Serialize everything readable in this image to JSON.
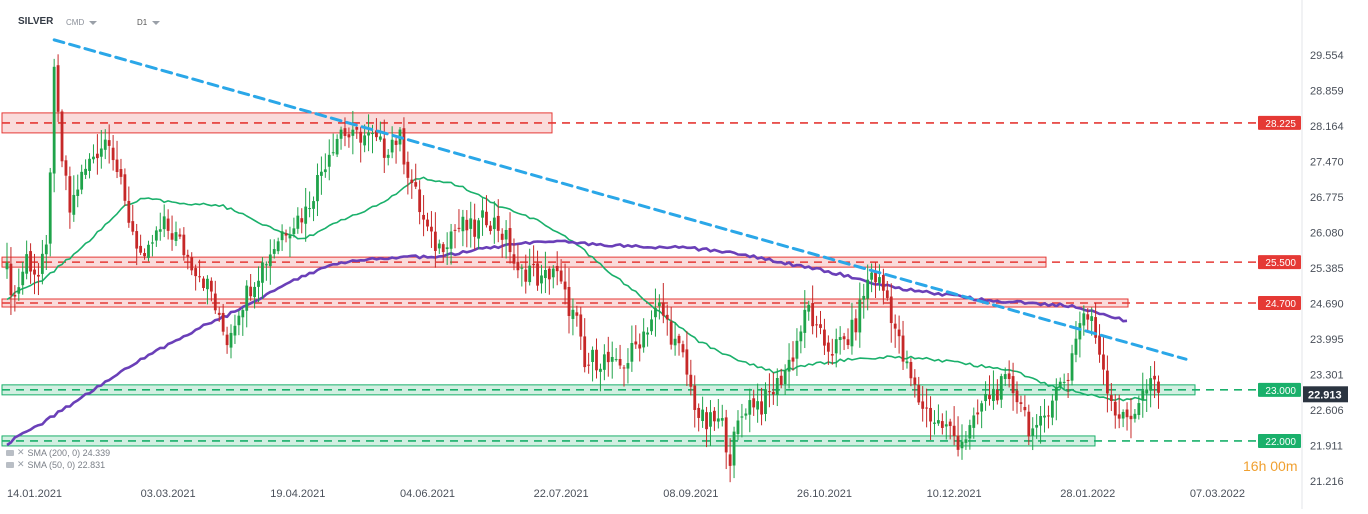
{
  "header": {
    "symbol": "SILVER",
    "source": "CMD",
    "timeframe": "D1"
  },
  "indicators": [
    {
      "label": "SMA (200, 0) 24.339"
    },
    {
      "label": "SMA (50, 0) 22.831"
    }
  ],
  "countdown": "16h 00m",
  "colors": {
    "up_candle": "#1fa34a",
    "down_candle": "#c62828",
    "sma200": "#6a3fb8",
    "sma50": "#1ab06b",
    "trendline": "#2aa7e8",
    "resistance": "#e53935",
    "support": "#1ab06b",
    "current_price_bg": "#2b3440"
  },
  "chart_data": {
    "type": "candlestick",
    "ylim": [
      21.216,
      29.9
    ],
    "y_ticks": [
      "29.554",
      "28.859",
      "28.164",
      "27.470",
      "26.775",
      "26.080",
      "25.385",
      "24.690",
      "23.995",
      "23.301",
      "22.606",
      "21.911",
      "21.216"
    ],
    "y_tick_values": [
      29.554,
      28.859,
      28.164,
      27.47,
      26.775,
      26.08,
      25.385,
      24.69,
      23.995,
      23.301,
      22.606,
      21.911,
      21.216
    ],
    "x_ticks": [
      "14.01.2021",
      "03.03.2021",
      "19.04.2021",
      "04.06.2021",
      "22.07.2021",
      "08.09.2021",
      "26.10.2021",
      "10.12.2021",
      "28.01.2022",
      "07.03.2022"
    ],
    "x_tick_bars": [
      0,
      34,
      67,
      100,
      134,
      167,
      201,
      234,
      268,
      301
    ],
    "levels": [
      {
        "label": "28.225",
        "value": 28.225,
        "kind": "resistance"
      },
      {
        "label": "25.500",
        "value": 25.5,
        "kind": "resistance"
      },
      {
        "label": "24.700",
        "value": 24.7,
        "kind": "resistance"
      },
      {
        "label": "23.000",
        "value": 23.0,
        "kind": "support"
      },
      {
        "label": "22.000",
        "value": 22.0,
        "kind": "support"
      }
    ],
    "current_price": "22.913",
    "trendline": {
      "from": [
        12,
        29.85
      ],
      "to": [
        300,
        23.6
      ]
    },
    "close_anchors": [
      [
        0,
        25.3
      ],
      [
        2,
        24.8
      ],
      [
        5,
        25.6
      ],
      [
        8,
        25.2
      ],
      [
        10,
        25.7
      ],
      [
        12,
        29.1
      ],
      [
        14,
        27.5
      ],
      [
        16,
        26.5
      ],
      [
        18,
        27.0
      ],
      [
        22,
        27.6
      ],
      [
        26,
        28.0
      ],
      [
        28,
        27.3
      ],
      [
        30,
        26.6
      ],
      [
        33,
        25.9
      ],
      [
        35,
        25.4
      ],
      [
        37,
        25.9
      ],
      [
        40,
        26.2
      ],
      [
        43,
        26.0
      ],
      [
        46,
        25.6
      ],
      [
        49,
        25.3
      ],
      [
        52,
        24.9
      ],
      [
        54,
        24.3
      ],
      [
        56,
        24.0
      ],
      [
        59,
        24.6
      ],
      [
        63,
        25.2
      ],
      [
        67,
        25.7
      ],
      [
        70,
        26.1
      ],
      [
        73,
        26.3
      ],
      [
        76,
        26.5
      ],
      [
        79,
        27.1
      ],
      [
        82,
        27.7
      ],
      [
        85,
        28.1
      ],
      [
        88,
        27.9
      ],
      [
        90,
        28.0
      ],
      [
        93,
        27.9
      ],
      [
        96,
        27.7
      ],
      [
        98,
        27.9
      ],
      [
        100,
        27.9
      ],
      [
        102,
        27.3
      ],
      [
        104,
        26.8
      ],
      [
        106,
        26.3
      ],
      [
        108,
        25.9
      ],
      [
        110,
        25.8
      ],
      [
        113,
        26.1
      ],
      [
        116,
        26.2
      ],
      [
        119,
        26.1
      ],
      [
        122,
        26.4
      ],
      [
        125,
        26.2
      ],
      [
        128,
        25.8
      ],
      [
        130,
        25.2
      ],
      [
        133,
        25.4
      ],
      [
        136,
        25.1
      ],
      [
        139,
        25.4
      ],
      [
        142,
        24.8
      ],
      [
        145,
        24.3
      ],
      [
        147,
        23.4
      ],
      [
        149,
        23.6
      ],
      [
        152,
        23.6
      ],
      [
        155,
        23.4
      ],
      [
        158,
        23.6
      ],
      [
        161,
        24.0
      ],
      [
        164,
        24.4
      ],
      [
        166,
        24.6
      ],
      [
        168,
        24.3
      ],
      [
        170,
        23.9
      ],
      [
        172,
        23.6
      ],
      [
        174,
        23.0
      ],
      [
        176,
        22.5
      ],
      [
        178,
        22.3
      ],
      [
        180,
        22.4
      ],
      [
        182,
        22.3
      ],
      [
        184,
        21.7
      ],
      [
        186,
        22.3
      ],
      [
        188,
        22.7
      ],
      [
        190,
        22.8
      ],
      [
        192,
        22.7
      ],
      [
        194,
        22.9
      ],
      [
        196,
        23.1
      ],
      [
        198,
        23.4
      ],
      [
        200,
        23.7
      ],
      [
        202,
        24.2
      ],
      [
        204,
        24.6
      ],
      [
        206,
        24.1
      ],
      [
        208,
        23.9
      ],
      [
        210,
        23.8
      ],
      [
        212,
        23.9
      ],
      [
        214,
        24.0
      ],
      [
        216,
        24.3
      ],
      [
        218,
        24.9
      ],
      [
        220,
        25.3
      ],
      [
        222,
        25.1
      ],
      [
        224,
        24.8
      ],
      [
        226,
        24.2
      ],
      [
        228,
        23.6
      ],
      [
        230,
        23.2
      ],
      [
        232,
        22.8
      ],
      [
        234,
        22.6
      ],
      [
        236,
        22.4
      ],
      [
        238,
        22.3
      ],
      [
        240,
        22.2
      ],
      [
        242,
        22.0
      ],
      [
        244,
        22.1
      ],
      [
        246,
        22.3
      ],
      [
        248,
        22.7
      ],
      [
        250,
        22.9
      ],
      [
        252,
        23.0
      ],
      [
        254,
        23.1
      ],
      [
        256,
        23.0
      ],
      [
        258,
        22.8
      ],
      [
        260,
        22.3
      ],
      [
        262,
        22.1
      ],
      [
        264,
        22.5
      ],
      [
        266,
        22.9
      ],
      [
        268,
        23.1
      ],
      [
        270,
        23.3
      ],
      [
        272,
        24.1
      ],
      [
        274,
        24.5
      ],
      [
        276,
        24.3
      ],
      [
        278,
        23.8
      ],
      [
        280,
        23.1
      ],
      [
        282,
        22.6
      ],
      [
        284,
        22.4
      ],
      [
        286,
        22.5
      ],
      [
        288,
        22.8
      ],
      [
        290,
        23.0
      ],
      [
        292,
        23.1
      ],
      [
        293,
        22.913
      ]
    ],
    "sma200_anchors": [
      [
        0,
        21.95
      ],
      [
        10,
        22.4
      ],
      [
        20,
        22.9
      ],
      [
        30,
        23.4
      ],
      [
        40,
        23.85
      ],
      [
        50,
        24.25
      ],
      [
        60,
        24.6
      ],
      [
        70,
        25.05
      ],
      [
        80,
        25.38
      ],
      [
        90,
        25.55
      ],
      [
        100,
        25.6
      ],
      [
        110,
        25.6
      ],
      [
        120,
        25.75
      ],
      [
        130,
        25.85
      ],
      [
        140,
        25.9
      ],
      [
        150,
        25.85
      ],
      [
        160,
        25.8
      ],
      [
        170,
        25.8
      ],
      [
        180,
        25.73
      ],
      [
        190,
        25.6
      ],
      [
        200,
        25.45
      ],
      [
        210,
        25.3
      ],
      [
        220,
        25.1
      ],
      [
        230,
        24.95
      ],
      [
        240,
        24.85
      ],
      [
        250,
        24.75
      ],
      [
        260,
        24.7
      ],
      [
        270,
        24.65
      ],
      [
        280,
        24.45
      ],
      [
        285,
        24.339
      ]
    ],
    "sma50_anchors": [
      [
        0,
        24.8
      ],
      [
        10,
        25.2
      ],
      [
        20,
        25.85
      ],
      [
        30,
        26.6
      ],
      [
        35,
        26.75
      ],
      [
        45,
        26.65
      ],
      [
        55,
        26.6
      ],
      [
        65,
        26.25
      ],
      [
        75,
        25.95
      ],
      [
        85,
        26.3
      ],
      [
        95,
        26.65
      ],
      [
        105,
        27.15
      ],
      [
        115,
        27.0
      ],
      [
        125,
        26.6
      ],
      [
        135,
        26.3
      ],
      [
        145,
        25.85
      ],
      [
        155,
        25.2
      ],
      [
        165,
        24.6
      ],
      [
        175,
        24.0
      ],
      [
        185,
        23.6
      ],
      [
        195,
        23.35
      ],
      [
        205,
        23.5
      ],
      [
        215,
        23.6
      ],
      [
        225,
        23.65
      ],
      [
        235,
        23.6
      ],
      [
        245,
        23.5
      ],
      [
        255,
        23.4
      ],
      [
        265,
        23.1
      ],
      [
        275,
        22.9
      ],
      [
        282,
        22.8
      ],
      [
        290,
        22.831
      ]
    ]
  }
}
